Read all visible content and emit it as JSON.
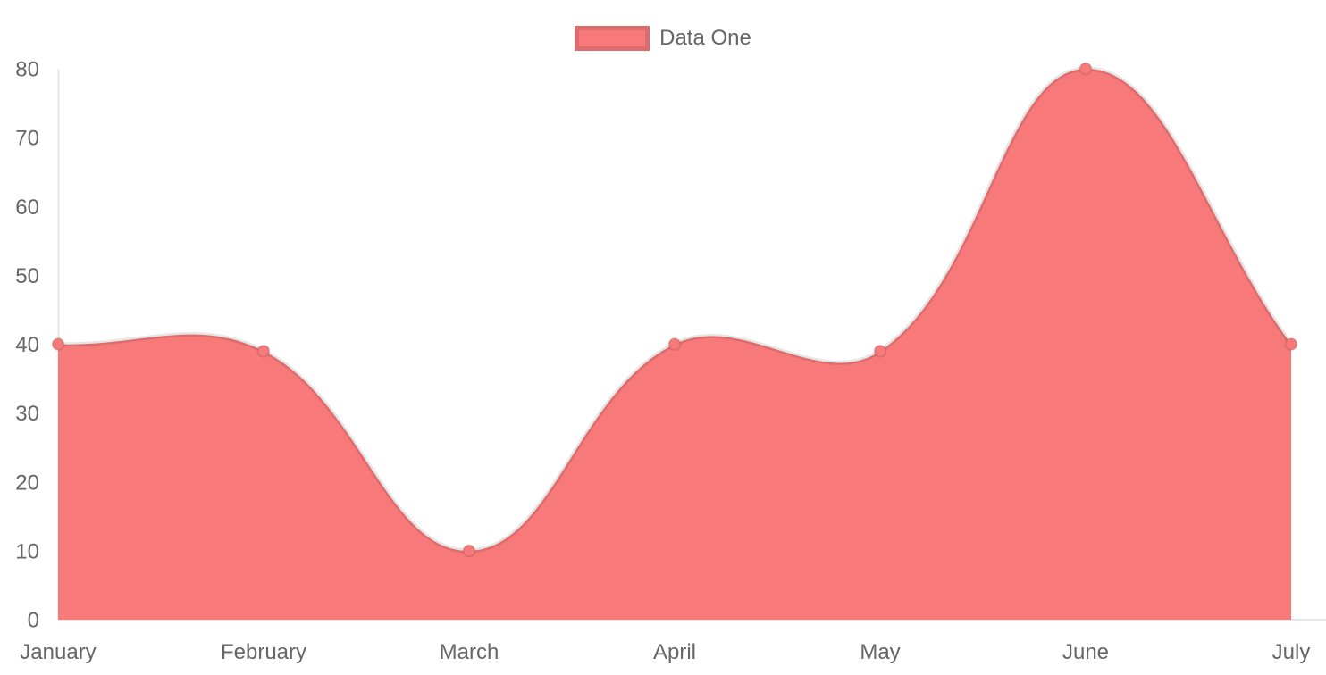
{
  "chart_data": {
    "type": "area",
    "title": "",
    "categories": [
      "January",
      "February",
      "March",
      "April",
      "May",
      "June",
      "July"
    ],
    "series": [
      {
        "name": "Data One",
        "values": [
          40,
          39,
          10,
          40,
          39,
          80,
          40
        ]
      }
    ],
    "xlabel": "",
    "ylabel": "",
    "ylim": [
      0,
      80
    ],
    "y_ticks": [
      0,
      10,
      20,
      30,
      40,
      50,
      60,
      70,
      80
    ],
    "grid": false,
    "legend_position": "top",
    "line_tension": 0.4,
    "colors": {
      "fill": "#f87979",
      "line": "rgba(0,0,0,0.1)",
      "point_fill": "#f87979",
      "point_border": "rgba(0,0,0,0.1)",
      "axis_line": "rgba(0,0,0,0.1)",
      "tick_label": "#666666",
      "background": "#ffffff"
    }
  },
  "legend": {
    "items": [
      {
        "label": "Data One",
        "swatch_color": "#f87979"
      }
    ]
  }
}
